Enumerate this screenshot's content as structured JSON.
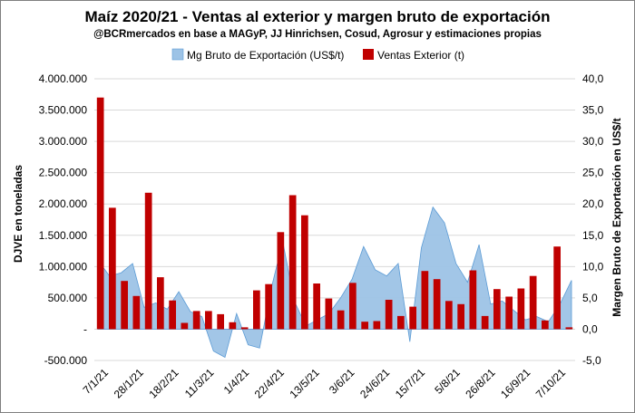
{
  "chart_data": {
    "type": "bar",
    "title": "Maíz 2020/21 - Ventas al exterior y margen bruto de exportación",
    "subtitle": "@BCRmercados en base a MAGyP, JJ Hinrichsen, Cosud, Agrosur y estimaciones propias",
    "ylabel": "DJVE en toneladas",
    "y2label": "Margen Bruto de Exportación en US$/t",
    "ylim": [
      -500000,
      4000000
    ],
    "y2lim": [
      -5,
      40
    ],
    "yticks": [
      "-500.000",
      "-",
      "500.000",
      "1.000.000",
      "1.500.000",
      "2.000.000",
      "2.500.000",
      "3.000.000",
      "3.500.000",
      "4.000.000"
    ],
    "y2ticks": [
      "-5,0",
      "0,0",
      "5,0",
      "10,0",
      "15,0",
      "20,0",
      "25,0",
      "30,0",
      "35,0",
      "40,0"
    ],
    "x_tick_labels": [
      "7/1/21",
      "28/1/21",
      "18/2/21",
      "11/3/21",
      "1/4/21",
      "22/4/21",
      "13/5/21",
      "3/6/21",
      "24/6/21",
      "15/7/21",
      "5/8/21",
      "26/8/21",
      "16/9/21",
      "7/10/21"
    ],
    "legend_position": "top",
    "series": [
      {
        "name": "Mg Bruto de Exportación (US$/t)",
        "type": "area",
        "color": "#9dc3e6",
        "values": [
          11.0,
          8.5,
          9.0,
          10.5,
          3.5,
          4.2,
          3.2,
          6.0,
          2.8,
          2.0,
          -3.5,
          -4.5,
          2.5,
          -2.5,
          -3.0,
          6.5,
          14.0,
          4.5,
          0.5,
          1.5,
          2.5,
          5.0,
          8.0,
          13.2,
          9.5,
          8.5,
          10.5,
          -2.0,
          13.0,
          19.5,
          17.0,
          10.5,
          7.5,
          13.5,
          4.0,
          4.5,
          3.0,
          1.5,
          2.0,
          1.2,
          4.0,
          7.8
        ]
      },
      {
        "name": "Ventas Exterior (t)",
        "type": "bar",
        "color": "#c00000",
        "values": [
          3700000,
          1940000,
          770000,
          530000,
          2180000,
          830000,
          460000,
          100000,
          290000,
          290000,
          240000,
          110000,
          30000,
          620000,
          720000,
          1550000,
          2140000,
          1820000,
          730000,
          490000,
          300000,
          740000,
          120000,
          130000,
          470000,
          210000,
          360000,
          930000,
          800000,
          450000,
          400000,
          940000,
          210000,
          640000,
          520000,
          650000,
          850000,
          140000,
          1320000,
          30000
        ]
      }
    ]
  }
}
